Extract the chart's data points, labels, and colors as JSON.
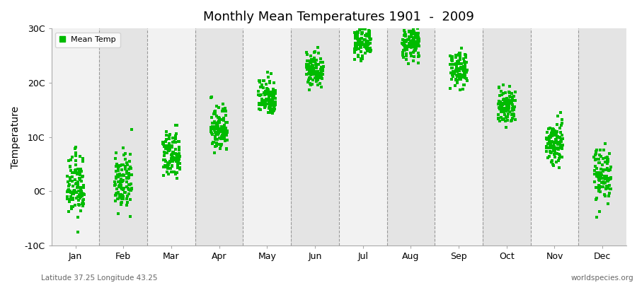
{
  "title": "Monthly Mean Temperatures 1901  -  2009",
  "ylabel": "Temperature",
  "subtitle_left": "Latitude 37.25 Longitude 43.25",
  "subtitle_right": "worldspecies.org",
  "ylim": [
    -10,
    30
  ],
  "ytick_labels": [
    "-10C",
    "0C",
    "10C",
    "20C",
    "30C"
  ],
  "ytick_values": [
    -10,
    0,
    10,
    20,
    30
  ],
  "months": [
    "Jan",
    "Feb",
    "Mar",
    "Apr",
    "May",
    "Jun",
    "Jul",
    "Aug",
    "Sep",
    "Oct",
    "Nov",
    "Dec"
  ],
  "dot_color": "#00BB00",
  "bg_color": "#FFFFFF",
  "plot_bg_light": "#F2F2F2",
  "plot_bg_dark": "#E4E4E4",
  "legend_label": "Mean Temp",
  "n_years": 109,
  "monthly_means": [
    0.8,
    1.5,
    6.5,
    11.5,
    17.5,
    22.5,
    27.5,
    27.2,
    22.5,
    15.5,
    9.0,
    3.2
  ],
  "monthly_stds": [
    2.8,
    2.5,
    2.2,
    2.2,
    1.8,
    1.6,
    1.4,
    1.4,
    1.6,
    1.8,
    2.2,
    2.5
  ]
}
